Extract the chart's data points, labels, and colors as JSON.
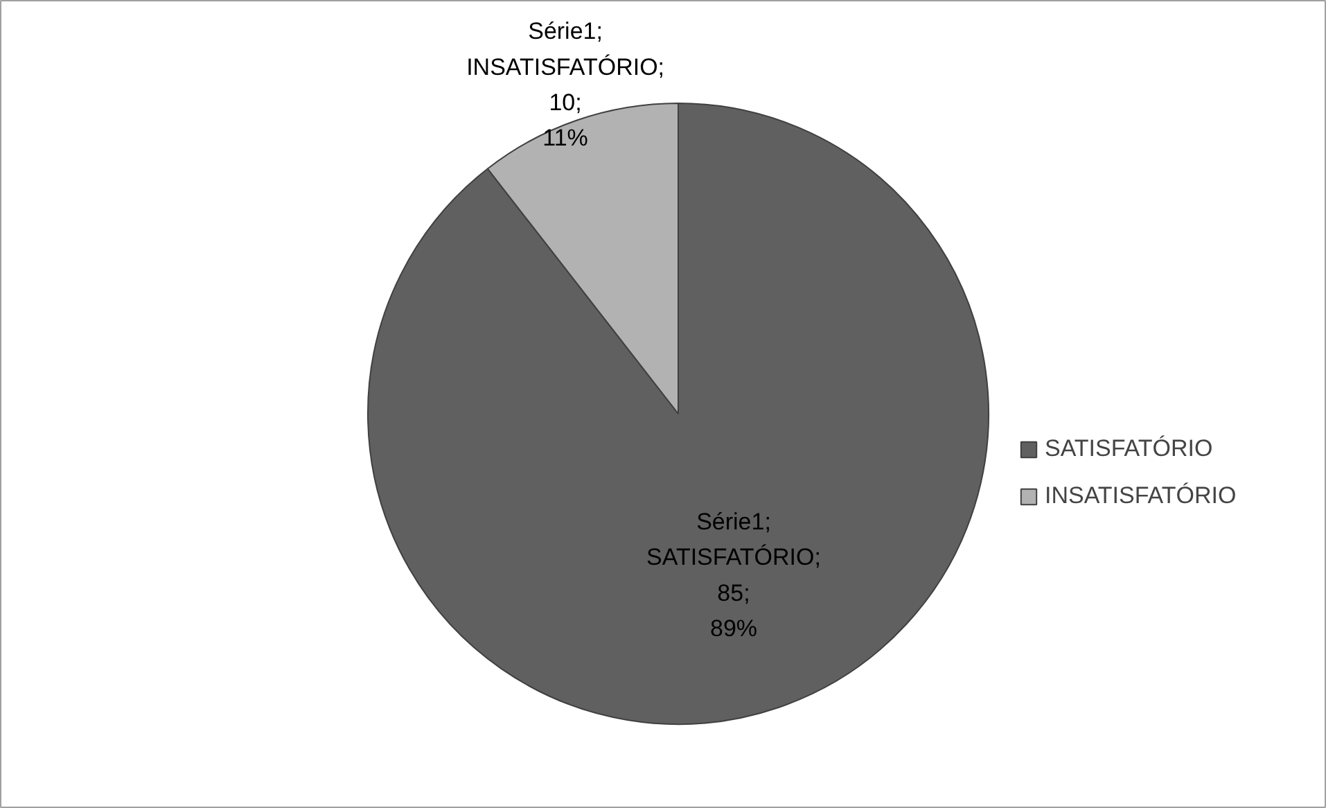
{
  "chart_data": {
    "type": "pie",
    "categories": [
      "SATISFATÓRIO",
      "INSATISFATÓRIO"
    ],
    "values": [
      85,
      10
    ],
    "colors": [
      "#606060",
      "#b2b2b2"
    ],
    "value_labels": [
      "Série1; SATISFATÓRIO; 85; 89%",
      "Série1; INSATISFATÓRIO; 10; 11%"
    ],
    "legend": "right"
  }
}
